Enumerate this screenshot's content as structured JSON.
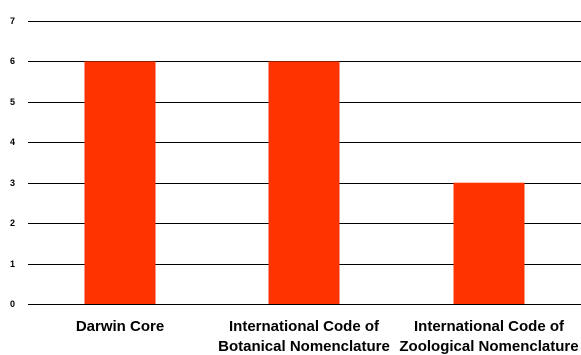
{
  "chart_data": {
    "type": "bar",
    "categories": [
      [
        "Darwin Core"
      ],
      [
        "International Code of",
        "Botanical Nomenclature"
      ],
      [
        "International Code of",
        "Zoological Nomenclature"
      ]
    ],
    "values": [
      6,
      6,
      3
    ],
    "ylim": [
      0,
      7
    ],
    "yticks": [
      "0",
      "1",
      "2",
      "3",
      "4",
      "5",
      "6",
      "7"
    ],
    "grid": true,
    "legend": "none",
    "bar_color": "#ff3300",
    "grid_color": "#000000"
  }
}
